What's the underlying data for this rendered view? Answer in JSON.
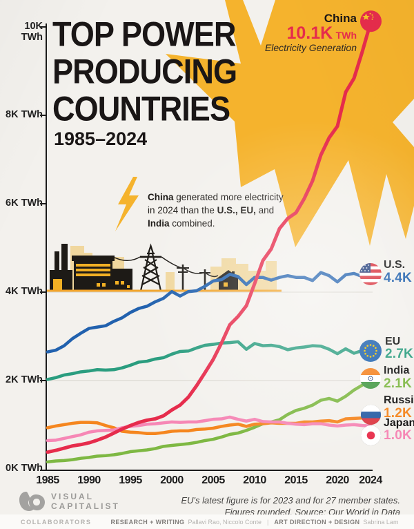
{
  "title": {
    "lines": [
      "TOP POWER",
      "PRODUCING",
      "COUNTRIES"
    ],
    "subtitle": "1985–2024"
  },
  "callout": {
    "country": "China",
    "value": "10.1K",
    "unit": "TWh",
    "caption": "Electricity Generation"
  },
  "annotation": {
    "l1_bold": "China",
    "l1_rest": " generated more electricity",
    "l2_a": "in 2024 than the ",
    "l2_bold": "U.S., EU,",
    "l2_c": " and",
    "l3_bold": "India",
    "l3_rest": " combined."
  },
  "legend": [
    {
      "name": "U.S.",
      "value": "4.4K",
      "flag": "us-flag-icon",
      "color": "#2161ae"
    },
    {
      "name": "EU",
      "value": "2.7K",
      "flag": "eu-flag-icon",
      "color": "#2a9d7f"
    },
    {
      "name": "India",
      "value": "2.1K",
      "flag": "india-flag-icon",
      "color": "#7eb843"
    },
    {
      "name": "Russia",
      "value": "1.2K",
      "flag": "russia-flag-icon",
      "color": "#f5861f"
    },
    {
      "name": "Japan",
      "value": "1.0K",
      "flag": "japan-flag-icon",
      "color": "#f687b5"
    }
  ],
  "footer": {
    "brand_top": "VISUAL",
    "brand_bottom": "CAPITALIST",
    "note_line1": "EU's latest figure is for 2023 and for 27 member states.",
    "note_line2": "Figures rounded. Source: Our World in Data"
  },
  "collaborators": {
    "label": "COLLABORATORS",
    "research_label": "RESEARCH + WRITING",
    "research_names": "Pallavi Rao, Niccolo Conte",
    "separator": "|",
    "design_label": "ART DIRECTION + DESIGN",
    "design_name": "Sabrina Lam"
  },
  "colors": {
    "paper": "#f3f1ed",
    "starburst": "#f5b32d",
    "china": "#e62c4c",
    "us": "#2161ae",
    "eu": "#2a9d7f",
    "india": "#7eb843",
    "russia": "#f5861f",
    "japan": "#f687b5",
    "gridline": "#dcd9d2",
    "axis": "#1b1b1b",
    "illustration_black": "#1d1a16",
    "illustration_yellow": "#f2b024",
    "illustration_cream": "#f0d79e"
  },
  "chart_data": {
    "type": "line",
    "title": "Top Power Producing Countries, 1985–2024",
    "ylabel": "Electricity generation",
    "unit": "thousand TWh",
    "x_start": 1985,
    "x_step_years": 1,
    "xticks": [
      1985,
      1990,
      1995,
      2000,
      2005,
      2010,
      2015,
      2020,
      2024
    ],
    "xtick_labels": [
      "1985",
      "1990",
      "1995",
      "2000",
      "2005",
      "2010",
      "2015",
      "2020",
      "2024"
    ],
    "ytick_labels": [
      "0K TWh",
      "2K TWh",
      "4K TWh",
      "6K TWh",
      "8K TWh",
      "10K TWh"
    ],
    "ylim": [
      0,
      10.5
    ],
    "grid_levels": [
      2,
      4
    ],
    "legend_position": "right",
    "series": [
      {
        "name": "U.S.",
        "color": "#2161ae",
        "end_label": "4.4K",
        "values": [
          2.67,
          2.71,
          2.81,
          2.97,
          3.09,
          3.2,
          3.23,
          3.26,
          3.36,
          3.44,
          3.56,
          3.65,
          3.7,
          3.8,
          3.88,
          4.03,
          3.93,
          4.03,
          4.05,
          4.15,
          4.27,
          4.3,
          4.42,
          4.37,
          4.19,
          4.35,
          4.35,
          4.29,
          4.35,
          4.39,
          4.35,
          4.35,
          4.28,
          4.46,
          4.39,
          4.25,
          4.41,
          4.44,
          4.37,
          4.4
        ]
      },
      {
        "name": "EU",
        "color": "#2a9d7f",
        "end_label": "2.7K",
        "values": [
          2.05,
          2.09,
          2.15,
          2.18,
          2.22,
          2.24,
          2.27,
          2.26,
          2.27,
          2.31,
          2.37,
          2.44,
          2.46,
          2.51,
          2.54,
          2.62,
          2.68,
          2.69,
          2.76,
          2.82,
          2.84,
          2.87,
          2.88,
          2.9,
          2.73,
          2.86,
          2.81,
          2.82,
          2.79,
          2.72,
          2.76,
          2.78,
          2.81,
          2.8,
          2.73,
          2.63,
          2.74,
          2.64,
          2.7
        ]
      },
      {
        "name": "India",
        "color": "#7eb843",
        "end_label": "2.1K",
        "values": [
          0.19,
          0.21,
          0.22,
          0.24,
          0.27,
          0.29,
          0.32,
          0.33,
          0.35,
          0.38,
          0.42,
          0.44,
          0.46,
          0.49,
          0.54,
          0.56,
          0.58,
          0.6,
          0.63,
          0.67,
          0.7,
          0.75,
          0.81,
          0.84,
          0.9,
          0.97,
          1.05,
          1.09,
          1.14,
          1.26,
          1.35,
          1.4,
          1.47,
          1.58,
          1.62,
          1.56,
          1.67,
          1.81,
          1.92,
          2.07
        ]
      },
      {
        "name": "Russia",
        "color": "#f5861f",
        "end_label": "1.2K",
        "values": [
          0.96,
          1.0,
          1.03,
          1.06,
          1.08,
          1.08,
          1.07,
          1.01,
          0.96,
          0.88,
          0.86,
          0.85,
          0.83,
          0.83,
          0.85,
          0.88,
          0.89,
          0.89,
          0.92,
          0.93,
          0.95,
          0.99,
          1.02,
          1.04,
          0.99,
          1.04,
          1.05,
          1.07,
          1.06,
          1.06,
          1.06,
          1.09,
          1.09,
          1.11,
          1.12,
          1.09,
          1.16,
          1.17,
          1.18,
          1.2
        ]
      },
      {
        "name": "Japan",
        "color": "#f687b5",
        "end_label": "1.0K",
        "values": [
          0.67,
          0.68,
          0.72,
          0.76,
          0.8,
          0.86,
          0.89,
          0.9,
          0.91,
          0.96,
          0.99,
          1.01,
          1.04,
          1.05,
          1.07,
          1.09,
          1.08,
          1.09,
          1.09,
          1.12,
          1.15,
          1.16,
          1.2,
          1.15,
          1.11,
          1.15,
          1.1,
          1.09,
          1.09,
          1.06,
          1.04,
          1.03,
          1.05,
          1.05,
          1.02,
          1.0,
          1.02,
          1.03,
          1.01,
          1.0
        ]
      },
      {
        "name": "China",
        "color": "#e62c4c",
        "end_label": "10.1K",
        "values": [
          0.41,
          0.45,
          0.5,
          0.55,
          0.58,
          0.62,
          0.68,
          0.75,
          0.84,
          0.93,
          1.01,
          1.08,
          1.13,
          1.16,
          1.23,
          1.36,
          1.47,
          1.65,
          1.91,
          2.2,
          2.5,
          2.87,
          3.28,
          3.47,
          3.71,
          4.21,
          4.73,
          4.99,
          5.45,
          5.68,
          5.81,
          6.13,
          6.53,
          7.11,
          7.5,
          7.76,
          8.53,
          8.84,
          9.44,
          10.09
        ]
      }
    ]
  }
}
